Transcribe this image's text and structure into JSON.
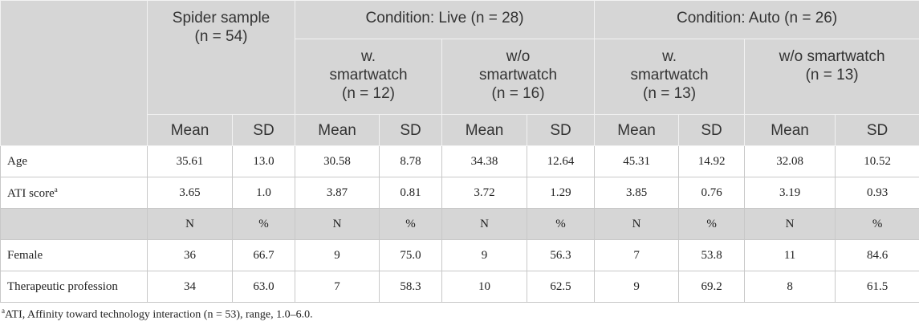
{
  "table": {
    "header": {
      "groups": [
        "Spider sample\n(n = 54)",
        "Condition: Live (n = 28)",
        "Condition: Auto (n = 26)"
      ],
      "subgroups": [
        "w.\nsmartwatch\n(n = 12)",
        "w/o\nsmartwatch\n(n = 16)",
        "w.\nsmartwatch\n(n = 13)",
        "w/o smartwatch\n(n = 13)"
      ],
      "stats": [
        "Mean",
        "SD",
        "Mean",
        "SD",
        "Mean",
        "SD",
        "Mean",
        "SD",
        "Mean",
        "SD"
      ]
    },
    "continuous_rows": [
      {
        "label": "Age",
        "cells": [
          "35.61",
          "13.0",
          "30.58",
          "8.78",
          "34.38",
          "12.64",
          "45.31",
          "14.92",
          "32.08",
          "10.52"
        ]
      },
      {
        "label": "ATI score",
        "note": "a",
        "cells": [
          "3.65",
          "1.0",
          "3.87",
          "0.81",
          "3.72",
          "1.29",
          "3.85",
          "0.76",
          "3.19",
          "0.93"
        ]
      }
    ],
    "count_header": [
      "N",
      "%",
      "N",
      "%",
      "N",
      "%",
      "N",
      "%",
      "N",
      "%"
    ],
    "categorical_rows": [
      {
        "label": "Female",
        "cells": [
          "36",
          "66.7",
          "9",
          "75.0",
          "9",
          "56.3",
          "7",
          "53.8",
          "11",
          "84.6"
        ]
      },
      {
        "label": "Therapeutic profession",
        "cells": [
          "34",
          "63.0",
          "7",
          "58.3",
          "10",
          "62.5",
          "9",
          "69.2",
          "8",
          "61.5"
        ]
      }
    ]
  },
  "footnote": {
    "marker": "a",
    "text": "ATI, Affinity toward technology interaction (n = 53), range, 1.0–6.0."
  }
}
